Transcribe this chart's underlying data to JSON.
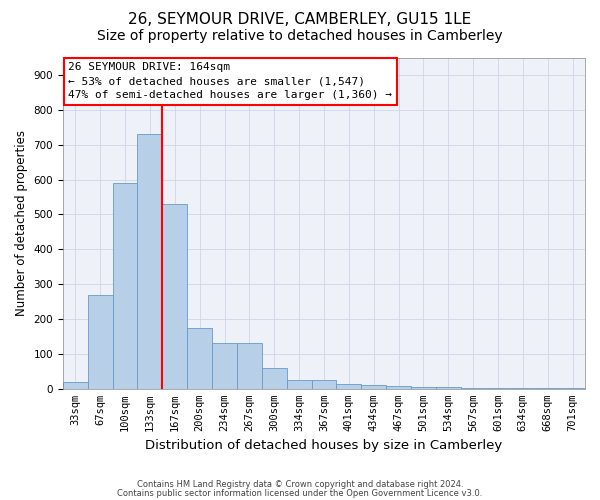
{
  "title1": "26, SEYMOUR DRIVE, CAMBERLEY, GU15 1LE",
  "title2": "Size of property relative to detached houses in Camberley",
  "xlabel": "Distribution of detached houses by size in Camberley",
  "ylabel": "Number of detached properties",
  "categories": [
    "33sqm",
    "67sqm",
    "100sqm",
    "133sqm",
    "167sqm",
    "200sqm",
    "234sqm",
    "267sqm",
    "300sqm",
    "334sqm",
    "367sqm",
    "401sqm",
    "434sqm",
    "467sqm",
    "501sqm",
    "534sqm",
    "567sqm",
    "601sqm",
    "634sqm",
    "668sqm",
    "701sqm"
  ],
  "values": [
    20,
    270,
    590,
    730,
    530,
    175,
    130,
    130,
    60,
    25,
    25,
    15,
    10,
    8,
    5,
    4,
    3,
    3,
    3,
    1,
    3
  ],
  "bar_color": "#b8cfe8",
  "bar_edge_color": "#6699cc",
  "vline_color": "red",
  "vline_x_index": 4,
  "annotation_box_text": "26 SEYMOUR DRIVE: 164sqm\n← 53% of detached houses are smaller (1,547)\n47% of semi-detached houses are larger (1,360) →",
  "box_edge_color": "red",
  "ylim": [
    0,
    950
  ],
  "yticks": [
    0,
    100,
    200,
    300,
    400,
    500,
    600,
    700,
    800,
    900
  ],
  "grid_color": "#ccd6e8",
  "background_color": "#eef2f8",
  "footer1": "Contains HM Land Registry data © Crown copyright and database right 2024.",
  "footer2": "Contains public sector information licensed under the Open Government Licence v3.0.",
  "title1_fontsize": 11,
  "title2_fontsize": 10,
  "xlabel_fontsize": 9.5,
  "ylabel_fontsize": 8.5,
  "annotation_fontsize": 8,
  "tick_fontsize": 7.5,
  "footer_fontsize": 6
}
